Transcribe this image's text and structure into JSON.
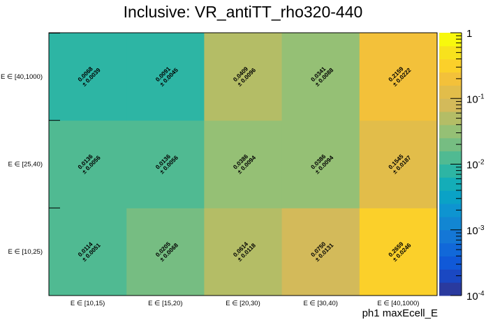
{
  "chart_data": {
    "type": "heatmap",
    "title": "Inclusive: VR_antiTT_rho320-440",
    "xlabel": "ph1 maxEcell_E",
    "ylabel": "",
    "x_categories": [
      "E ∈ [10,15)",
      "E ∈ [15,20)",
      "E ∈ [20,30)",
      "E ∈ [30,40)",
      "E ∈ [40,1000)"
    ],
    "y_categories": [
      "E ∈ [10,25)",
      "E ∈ [25,40)",
      "E ∈ [40,1000)"
    ],
    "values": [
      [
        "0.0114",
        "0.0205",
        "0.0614",
        "0.0750",
        "0.2659"
      ],
      [
        "0.0136",
        "0.0136",
        "0.0386",
        "0.0386",
        "0.1545"
      ],
      [
        "0.0068",
        "0.0091",
        "0.0409",
        "0.0341",
        "0.2159"
      ]
    ],
    "errors": [
      [
        "0.0051",
        "0.0068",
        "0.0118",
        "0.0131",
        "0.0246"
      ],
      [
        "0.0056",
        "0.0056",
        "0.0094",
        "0.0094",
        "0.0187"
      ],
      [
        "0.0039",
        "0.0045",
        "0.0096",
        "0.0088",
        "0.0222"
      ]
    ],
    "zscale": "log",
    "zlim": [
      0.0001,
      1
    ],
    "colorbar_ticks": [
      "10^{-4}",
      "10^{-3}",
      "10^{-2}",
      "10^{-1}",
      "1"
    ]
  }
}
